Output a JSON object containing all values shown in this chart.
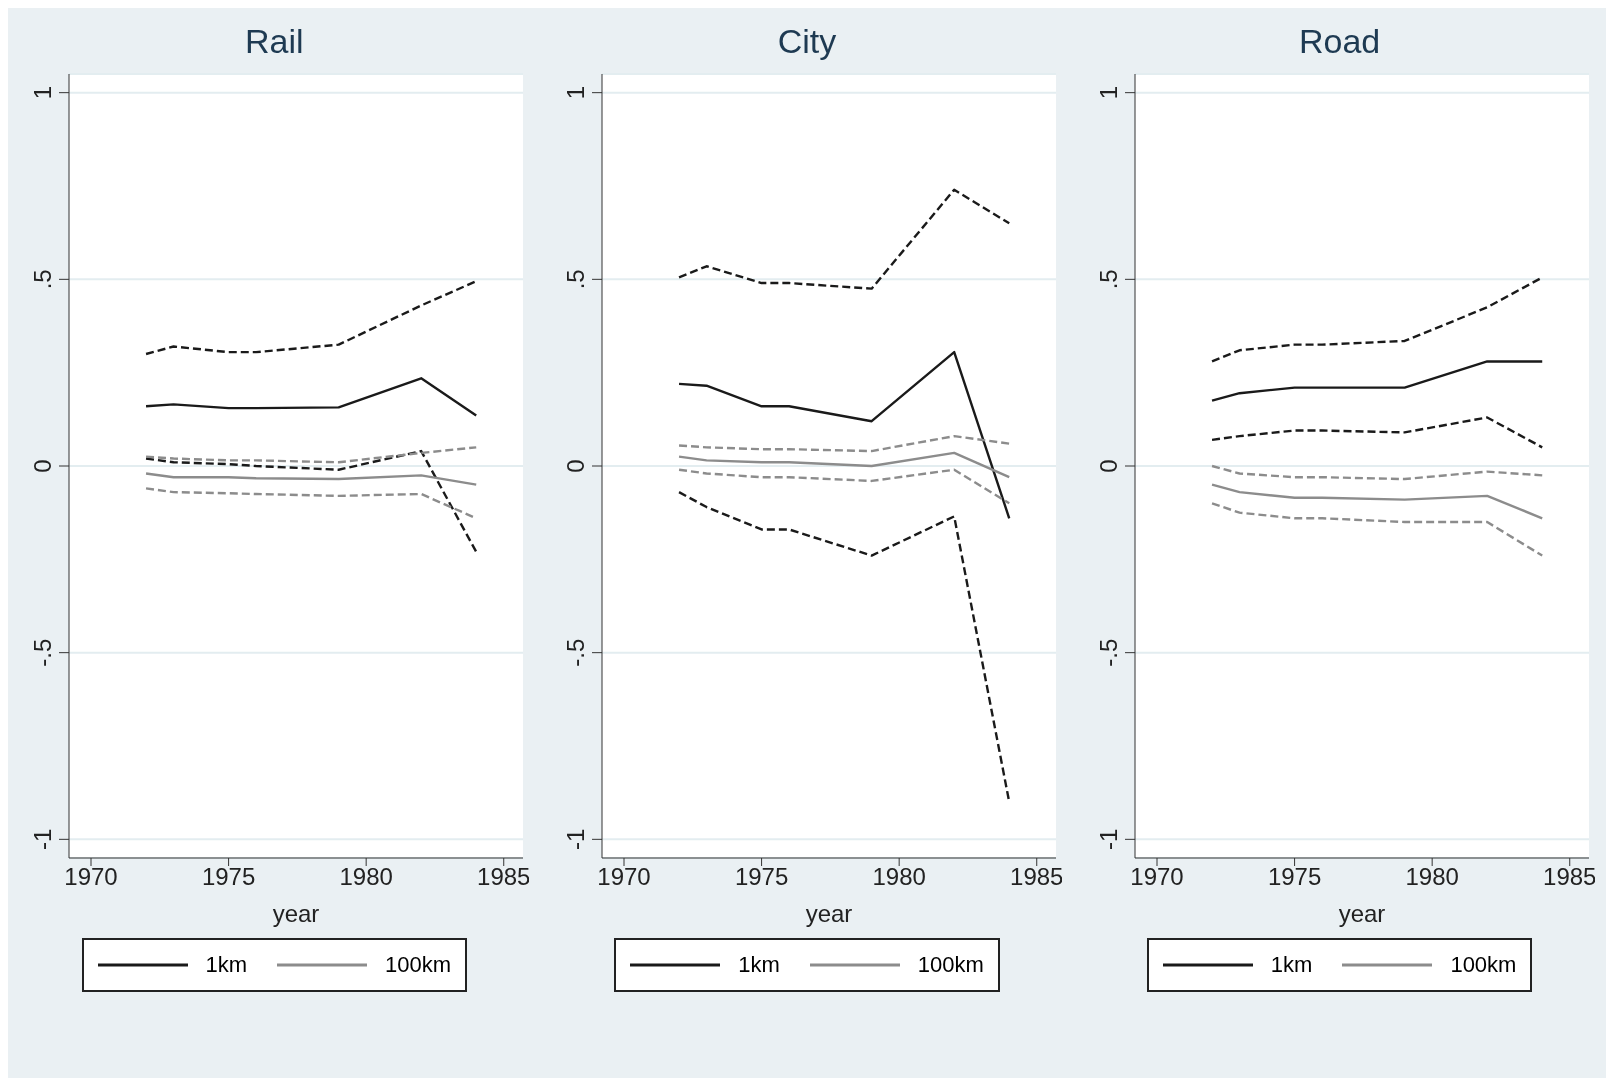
{
  "chart_data": [
    {
      "type": "line",
      "title": "Rail",
      "xlabel": "year",
      "x": [
        1972,
        1973,
        1975,
        1976,
        1979,
        1982,
        1984
      ],
      "xlim": [
        1969.2,
        1985.7
      ],
      "xticks": [
        1970,
        1975,
        1980,
        1985
      ],
      "ylim": [
        -1.05,
        1.05
      ],
      "yticks": [
        {
          "value": -1,
          "label": "-1"
        },
        {
          "value": -0.5,
          "label": "-.5"
        },
        {
          "value": 0,
          "label": "0"
        },
        {
          "value": 0.5,
          "label": ".5"
        },
        {
          "value": 1,
          "label": "1"
        }
      ],
      "grid": "y",
      "legend": "bottom",
      "marker": "none",
      "series": [
        {
          "name": "1km",
          "color": "#1a1a1a",
          "line_style": "solid",
          "values": [
            0.16,
            0.165,
            0.155,
            0.155,
            0.157,
            0.235,
            0.135
          ]
        },
        {
          "color": "#1a1a1a",
          "line_style": "dashed",
          "values": [
            0.3,
            0.32,
            0.305,
            0.305,
            0.325,
            0.43,
            0.495
          ]
        },
        {
          "color": "#1a1a1a",
          "line_style": "dashed",
          "values": [
            0.02,
            0.01,
            0.005,
            0.0,
            -0.01,
            0.04,
            -0.23
          ]
        },
        {
          "name": "100km",
          "color": "#8c8c8c",
          "line_style": "solid",
          "values": [
            -0.02,
            -0.03,
            -0.03,
            -0.033,
            -0.035,
            -0.025,
            -0.05
          ]
        },
        {
          "color": "#8c8c8c",
          "line_style": "dashed",
          "values": [
            0.025,
            0.02,
            0.015,
            0.015,
            0.01,
            0.035,
            0.05
          ]
        },
        {
          "color": "#8c8c8c",
          "line_style": "dashed",
          "values": [
            -0.06,
            -0.07,
            -0.073,
            -0.075,
            -0.08,
            -0.075,
            -0.14
          ]
        }
      ]
    },
    {
      "type": "line",
      "title": "City",
      "xlabel": "year",
      "x": [
        1972,
        1973,
        1975,
        1976,
        1979,
        1982,
        1984
      ],
      "xlim": [
        1969.2,
        1985.7
      ],
      "xticks": [
        1970,
        1975,
        1980,
        1985
      ],
      "ylim": [
        -1.05,
        1.05
      ],
      "yticks": [
        {
          "value": -1,
          "label": "-1"
        },
        {
          "value": -0.5,
          "label": "-.5"
        },
        {
          "value": 0,
          "label": "0"
        },
        {
          "value": 0.5,
          "label": ".5"
        },
        {
          "value": 1,
          "label": "1"
        }
      ],
      "grid": "y",
      "legend": "bottom",
      "marker": "none",
      "series": [
        {
          "name": "1km",
          "color": "#1a1a1a",
          "line_style": "solid",
          "values": [
            0.22,
            0.215,
            0.16,
            0.16,
            0.12,
            0.305,
            -0.14
          ]
        },
        {
          "color": "#1a1a1a",
          "line_style": "dashed",
          "values": [
            0.505,
            0.535,
            0.49,
            0.49,
            0.475,
            0.74,
            0.65
          ]
        },
        {
          "color": "#1a1a1a",
          "line_style": "dashed",
          "values": [
            -0.07,
            -0.11,
            -0.17,
            -0.17,
            -0.24,
            -0.135,
            -0.9
          ]
        },
        {
          "name": "100km",
          "color": "#8c8c8c",
          "line_style": "solid",
          "values": [
            0.025,
            0.015,
            0.01,
            0.01,
            0.0,
            0.035,
            -0.03
          ]
        },
        {
          "color": "#8c8c8c",
          "line_style": "dashed",
          "values": [
            0.055,
            0.05,
            0.045,
            0.045,
            0.04,
            0.08,
            0.06
          ]
        },
        {
          "color": "#8c8c8c",
          "line_style": "dashed",
          "values": [
            -0.01,
            -0.02,
            -0.03,
            -0.03,
            -0.04,
            -0.01,
            -0.1
          ]
        }
      ]
    },
    {
      "type": "line",
      "title": "Road",
      "xlabel": "year",
      "x": [
        1972,
        1973,
        1975,
        1976,
        1979,
        1982,
        1984
      ],
      "xlim": [
        1969.2,
        1985.7
      ],
      "xticks": [
        1970,
        1975,
        1980,
        1985
      ],
      "ylim": [
        -1.05,
        1.05
      ],
      "yticks": [
        {
          "value": -1,
          "label": "-1"
        },
        {
          "value": -0.5,
          "label": "-.5"
        },
        {
          "value": 0,
          "label": "0"
        },
        {
          "value": 0.5,
          "label": ".5"
        },
        {
          "value": 1,
          "label": "1"
        }
      ],
      "grid": "y",
      "legend": "bottom",
      "marker": "none",
      "series": [
        {
          "name": "1km",
          "color": "#1a1a1a",
          "line_style": "solid",
          "values": [
            0.175,
            0.195,
            0.21,
            0.21,
            0.21,
            0.28,
            0.28
          ]
        },
        {
          "color": "#1a1a1a",
          "line_style": "dashed",
          "values": [
            0.28,
            0.31,
            0.325,
            0.325,
            0.335,
            0.425,
            0.505
          ]
        },
        {
          "color": "#1a1a1a",
          "line_style": "dashed",
          "values": [
            0.07,
            0.08,
            0.095,
            0.095,
            0.09,
            0.13,
            0.05
          ]
        },
        {
          "name": "100km",
          "color": "#8c8c8c",
          "line_style": "solid",
          "values": [
            -0.05,
            -0.07,
            -0.085,
            -0.085,
            -0.09,
            -0.08,
            -0.14
          ]
        },
        {
          "color": "#8c8c8c",
          "line_style": "dashed",
          "values": [
            0.0,
            -0.02,
            -0.03,
            -0.03,
            -0.035,
            -0.015,
            -0.025
          ]
        },
        {
          "color": "#8c8c8c",
          "line_style": "dashed",
          "values": [
            -0.1,
            -0.125,
            -0.14,
            -0.14,
            -0.15,
            -0.15,
            -0.24
          ]
        }
      ]
    }
  ]
}
